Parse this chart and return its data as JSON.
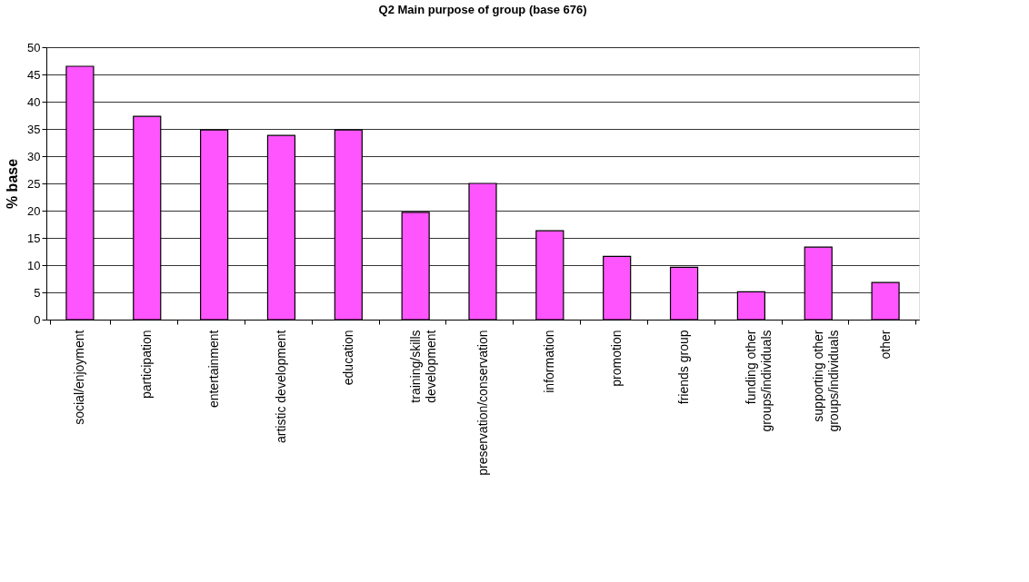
{
  "chart_data": {
    "type": "bar",
    "title": "Q2 Main purpose of group (base 676)",
    "ylabel": "% base",
    "categories": [
      "social/enjoyment",
      "participation",
      "entertainment",
      "artistic development",
      "education",
      "training/skills\ndevelopment",
      "preservation/conservation",
      "information",
      "promotion",
      "friends group",
      "funding other\ngroups/individuals",
      "supporting other\ngroups/individuals",
      "other"
    ],
    "values": [
      46.5,
      37.3,
      34.8,
      33.8,
      34.8,
      19.7,
      25,
      16.3,
      11.6,
      9.6,
      5.1,
      13.3,
      6.8
    ],
    "color": "#ff55ff",
    "ylim": [
      0,
      50
    ],
    "yticks": [
      0,
      5,
      10,
      15,
      20,
      25,
      30,
      35,
      40,
      45,
      50
    ],
    "grid": "y"
  }
}
